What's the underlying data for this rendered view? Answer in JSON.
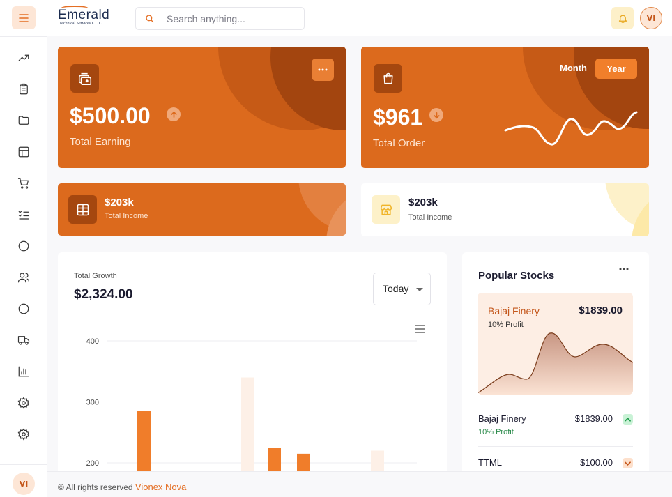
{
  "brand": {
    "logo_word": "Emerald",
    "logo_sub": "Technical Services L.L.C"
  },
  "header": {
    "search_placeholder": "Search anything...",
    "avatar_initials": "VI"
  },
  "sidebar": {
    "items": [
      {
        "icon": "trending-up-icon"
      },
      {
        "icon": "clipboard-icon"
      },
      {
        "icon": "folder-icon"
      },
      {
        "icon": "layout-icon"
      },
      {
        "icon": "cart-icon"
      },
      {
        "icon": "checklist-icon"
      },
      {
        "icon": "circle-icon"
      },
      {
        "icon": "users-icon"
      },
      {
        "icon": "circle-icon"
      },
      {
        "icon": "truck-icon"
      },
      {
        "icon": "bar-chart-icon"
      },
      {
        "icon": "settings-icon"
      },
      {
        "icon": "settings-icon"
      }
    ],
    "avatar_initials": "VI"
  },
  "cards": {
    "earning": {
      "amount": "$500.00",
      "label": "Total Earning",
      "trend": "up"
    },
    "order": {
      "amount": "$961",
      "label": "Total Order",
      "trend": "down",
      "toggle_month": "Month",
      "toggle_year": "Year",
      "toggle_active": "Year"
    },
    "income_orange": {
      "amount": "$203k",
      "label": "Total Income"
    },
    "income_white": {
      "amount": "$203k",
      "label": "Total Income"
    }
  },
  "growth": {
    "label": "Total Growth",
    "value": "$2,324.00",
    "period": "Today"
  },
  "chart_data": {
    "type": "bar",
    "title": "",
    "xlabel": "",
    "ylabel": "",
    "ylim": [
      170,
      400
    ],
    "y_ticks": [
      "400",
      "300",
      "200"
    ],
    "series": [
      {
        "values": [
          285,
          null,
          null,
          225,
          215,
          null
        ],
        "color": "#f07d2a"
      },
      {
        "values": [
          null,
          null,
          340,
          null,
          null,
          220
        ],
        "color": "#fdf0e7"
      }
    ],
    "categories": [
      "",
      "",
      "",
      "",
      "",
      ""
    ]
  },
  "stocks": {
    "title": "Popular Stocks",
    "featured": {
      "name": "Bajaj Finery",
      "profit": "10% Profit",
      "price": "$1839.00"
    },
    "rows": [
      {
        "name": "Bajaj Finery",
        "profit": "10% Profit",
        "price": "$1839.00",
        "trend": "up"
      },
      {
        "name": "TTML",
        "price": "$100.00",
        "trend": "down"
      }
    ]
  },
  "footer": {
    "text": "© All rights reserved",
    "brand": "Vionex Nova"
  },
  "colors": {
    "accent": "#dc6a1d",
    "accent_dark": "#a5470f",
    "accent_light": "#fde6d6",
    "bar": "#f07d2a",
    "bar_faint": "#fdf0e7"
  }
}
